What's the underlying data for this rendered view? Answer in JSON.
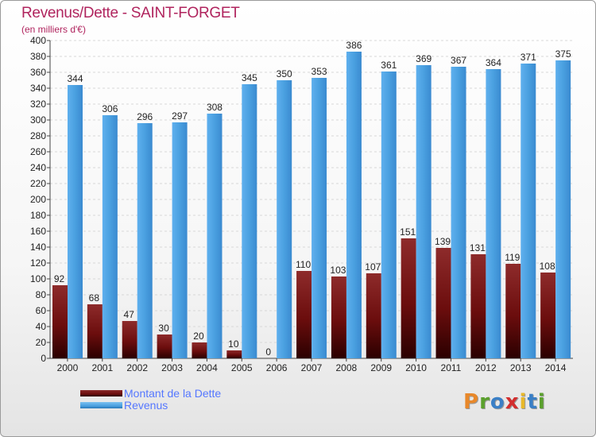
{
  "header": {
    "title": "Revenus/Dette - SAINT-FORGET",
    "subtitle": "(en milliers d'€)"
  },
  "legend": {
    "debt_label": "Montant de la Dette",
    "revenue_label": "Revenus"
  },
  "logo": {
    "letters": [
      "P",
      "r",
      "o",
      "x",
      "i",
      "t",
      "i"
    ],
    "colors": [
      "#e8882a",
      "#5aa02c",
      "#3a7fc6",
      "#d22f2f",
      "#e8b82a",
      "#3a7fc6",
      "#5aa02c"
    ]
  },
  "colors": {
    "debt": "#6b0d0d",
    "revenue": "#4aa0e0",
    "title": "#b0245e",
    "legend_text": "#5577ff"
  },
  "chart_data": {
    "type": "bar",
    "categories": [
      "2000",
      "2001",
      "2002",
      "2003",
      "2004",
      "2005",
      "2006",
      "2007",
      "2008",
      "2009",
      "2010",
      "2011",
      "2012",
      "2013",
      "2014"
    ],
    "series": [
      {
        "name": "Montant de la Dette",
        "values": [
          92,
          68,
          47,
          30,
          20,
          10,
          0,
          110,
          103,
          107,
          151,
          139,
          131,
          119,
          108
        ]
      },
      {
        "name": "Revenus",
        "values": [
          344,
          306,
          296,
          297,
          308,
          345,
          350,
          353,
          386,
          361,
          369,
          367,
          364,
          371,
          375
        ]
      }
    ],
    "ylim": [
      0,
      400
    ],
    "yticks": [
      0,
      20,
      40,
      60,
      80,
      100,
      120,
      140,
      160,
      180,
      200,
      220,
      240,
      260,
      280,
      300,
      320,
      340,
      360,
      380,
      400
    ],
    "grid": true,
    "legend_position": "bottom-left"
  }
}
